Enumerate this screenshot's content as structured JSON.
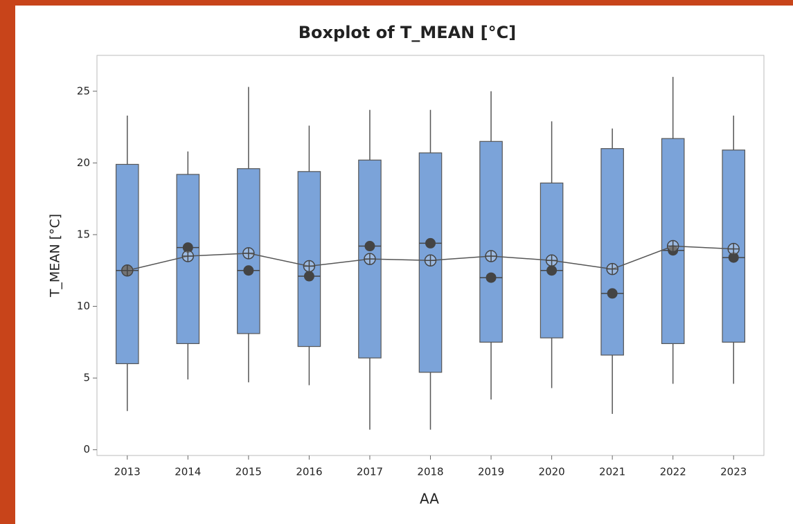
{
  "chart_data": {
    "type": "boxplot",
    "title": "Boxplot of T_MEAN [°C]",
    "y_label": "T_MEAN [°C]",
    "x_label": "AA",
    "categories": [
      "2013",
      "2014",
      "2015",
      "2016",
      "2017",
      "2018",
      "2019",
      "2020",
      "2021",
      "2022",
      "2023"
    ],
    "whisker_low": [
      2.7,
      4.9,
      4.7,
      4.5,
      1.4,
      1.4,
      3.5,
      4.3,
      2.5,
      4.6,
      4.6
    ],
    "q1": [
      6.0,
      7.4,
      8.1,
      7.2,
      6.4,
      5.4,
      7.5,
      7.8,
      6.6,
      7.4,
      7.5
    ],
    "median": [
      12.5,
      14.1,
      12.5,
      12.1,
      14.2,
      14.4,
      12.0,
      12.5,
      10.9,
      13.9,
      13.4
    ],
    "q3": [
      19.9,
      19.2,
      19.6,
      19.4,
      20.2,
      20.7,
      21.5,
      18.6,
      21.0,
      21.7,
      20.9
    ],
    "whisker_high": [
      23.3,
      20.8,
      25.3,
      22.6,
      23.7,
      23.7,
      25.0,
      22.9,
      22.4,
      26.0,
      23.3
    ],
    "mean": [
      12.5,
      13.5,
      13.7,
      12.8,
      13.3,
      13.2,
      13.5,
      13.2,
      12.6,
      14.2,
      14.0
    ],
    "box_color": "#7ba3d9",
    "line_color": "#555555",
    "marker_color": "#444444",
    "ylim": [
      -0.4,
      27.5
    ],
    "yticks": [
      0,
      5,
      10,
      15,
      20,
      25
    ]
  }
}
